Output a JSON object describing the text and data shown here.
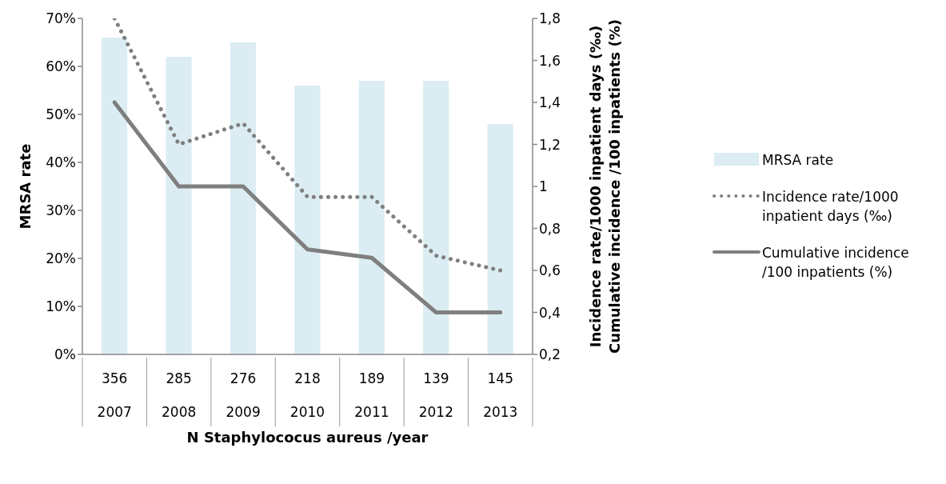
{
  "chart_data": {
    "type": "bar",
    "categories": [
      "356\n2007",
      "285\n2008",
      "276\n2009",
      "218\n2010",
      "189\n2011",
      "139\n2012",
      "145\n2013"
    ],
    "xlabel": "N Staphylococus aureus /year",
    "ylabel": "MRSA rate",
    "y2label": "Incidence rate/1000  inpatient days (‰)\nCumulative incidence /100  inpatients (%)",
    "series": [
      {
        "name": "MRSA rate",
        "color": "#dbedf3",
        "values": [
          66,
          62,
          65,
          56,
          57,
          57,
          48
        ]
      },
      {
        "name": "Incidence rate/1000 inpatient days (‰)",
        "type": "line",
        "axis": "y2",
        "line_style": "dotted",
        "color": "#7f7f7f",
        "values": [
          1.8,
          1.2,
          1.3,
          0.95,
          0.95,
          0.67,
          0.6
        ]
      },
      {
        "name": "Cumulative incidence /100  inpatients (%)",
        "type": "line",
        "axis": "y2",
        "line_style": "solid",
        "color": "#7f7f7f",
        "values": [
          1.4,
          1.0,
          1.0,
          0.7,
          0.66,
          0.4,
          0.4
        ]
      }
    ],
    "ylim": [
      0,
      70
    ],
    "yticks": [
      {
        "value": 0,
        "label": "0%"
      },
      {
        "value": 10,
        "label": "10%"
      },
      {
        "value": 20,
        "label": "20%"
      },
      {
        "value": 30,
        "label": "30%"
      },
      {
        "value": 40,
        "label": "40%"
      },
      {
        "value": 50,
        "label": "50%"
      },
      {
        "value": 60,
        "label": "60%"
      },
      {
        "value": 70,
        "label": "70%"
      }
    ],
    "y2lim": [
      0.2,
      1.8
    ],
    "y2ticks": [
      {
        "value": 0.2,
        "label": "0,2"
      },
      {
        "value": 0.4,
        "label": "0,4"
      },
      {
        "value": 0.6,
        "label": "0,6"
      },
      {
        "value": 0.8,
        "label": "0,8"
      },
      1,
      {
        "value": 1.2,
        "label": "1,2"
      },
      {
        "value": 1.4,
        "label": "1,4"
      },
      {
        "value": 1.6,
        "label": "1,6"
      },
      {
        "value": 1.8,
        "label": "1,8"
      }
    ],
    "grid": false,
    "legend": "right",
    "marker": "none"
  }
}
